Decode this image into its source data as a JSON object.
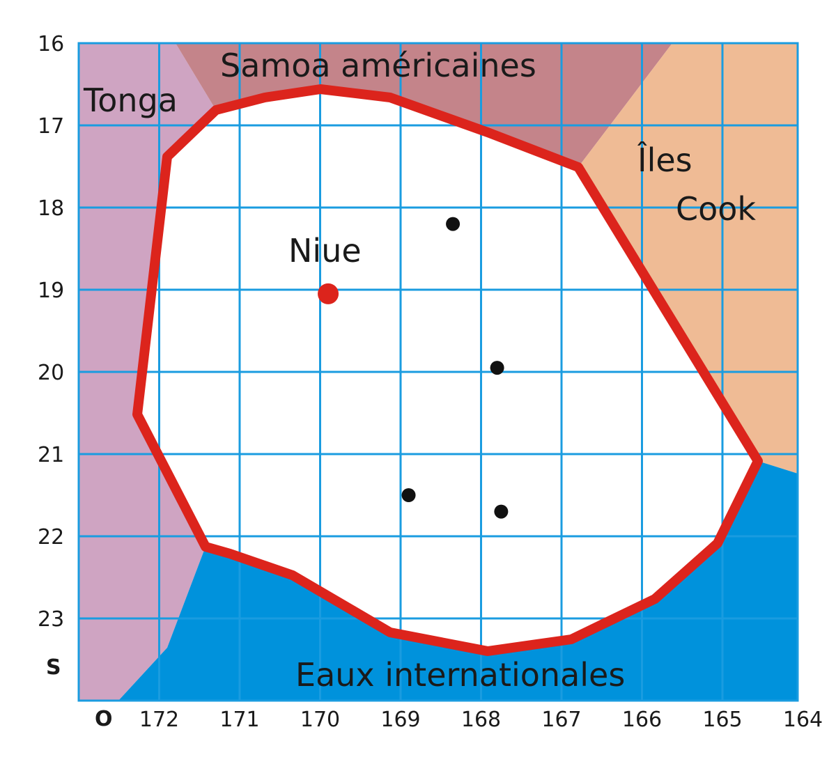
{
  "map": {
    "colors": {
      "tonga": "#cfa4c2",
      "samoa": "#c4848a",
      "cook": "#efbb95",
      "international_waters": "#0092dc",
      "eez_interior": "#ffffff",
      "eez_border": "#dc241c",
      "grid": "#1a9ce0",
      "boundary_edge": "#e8aaa0",
      "capital": "#dc241c",
      "island": "#111111"
    },
    "regions": {
      "tonga": "Tonga",
      "samoa": "Samoa américaines",
      "cook_line1": "Îles",
      "cook_line2": "Cook",
      "international_waters": "Eaux internationales",
      "niue": "Niue"
    },
    "latitude_labels": [
      "16",
      "17",
      "18",
      "19",
      "20",
      "21",
      "22",
      "23"
    ],
    "latitude_direction": "S",
    "longitude_labels": [
      "172",
      "171",
      "170",
      "169",
      "168",
      "167",
      "166",
      "165",
      "164"
    ],
    "longitude_direction": "O",
    "capital": {
      "name": "Niue",
      "lon": 169.9,
      "lat": 19.05
    },
    "islands": [
      {
        "lon": 168.35,
        "lat": 18.2
      },
      {
        "lon": 167.8,
        "lat": 19.95
      },
      {
        "lon": 168.9,
        "lat": 21.5
      },
      {
        "lon": 167.75,
        "lat": 21.7
      }
    ]
  }
}
